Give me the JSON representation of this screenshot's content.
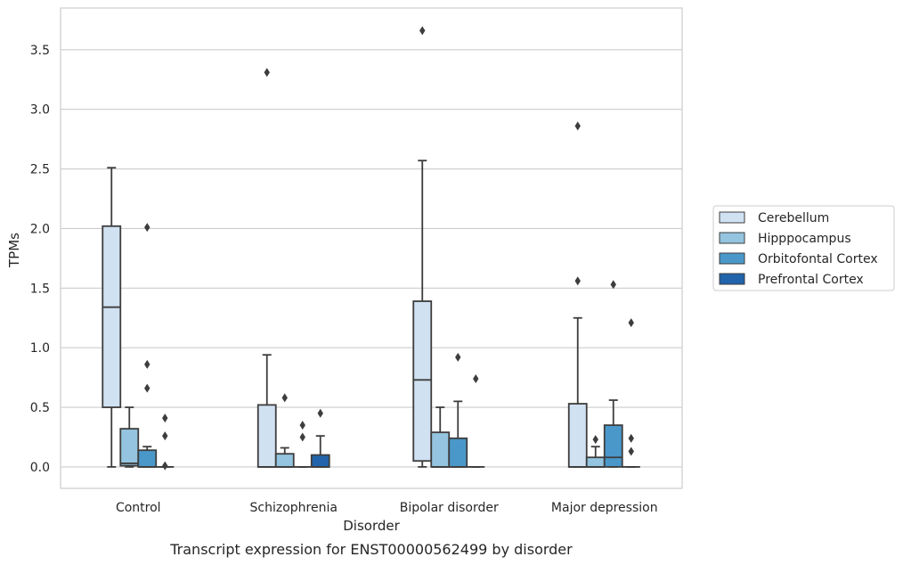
{
  "chart_data": {
    "type": "box",
    "xlabel": "Disorder",
    "ylabel": "TPMs",
    "caption": "Transcript expression for ENST00000562499 by disorder",
    "ylim": [
      -0.18,
      3.85
    ],
    "yticks": [
      0.0,
      0.5,
      1.0,
      1.5,
      2.0,
      2.5,
      3.0,
      3.5
    ],
    "ytick_labels": [
      "0.0",
      "0.5",
      "1.0",
      "1.5",
      "2.0",
      "2.5",
      "3.0",
      "3.5"
    ],
    "grid": "horizontal",
    "legend_position": "right",
    "categories": [
      "Control",
      "Schizophrenia",
      "Bipolar disorder",
      "Major depression"
    ],
    "series": [
      {
        "name": "Cerebellum",
        "color": "#d0e1f2",
        "boxes": [
          {
            "whislo": 0.0,
            "q1": 0.5,
            "med": 1.34,
            "q3": 2.02,
            "whishi": 2.51,
            "fliers": []
          },
          {
            "whislo": 0.0,
            "q1": 0.0,
            "med": 0.0,
            "q3": 0.52,
            "whishi": 0.94,
            "fliers": [
              3.31
            ]
          },
          {
            "whislo": 0.0,
            "q1": 0.05,
            "med": 0.73,
            "q3": 1.39,
            "whishi": 2.57,
            "fliers": [
              3.66
            ]
          },
          {
            "whislo": 0.0,
            "q1": 0.0,
            "med": 0.0,
            "q3": 0.53,
            "whishi": 1.25,
            "fliers": [
              2.86,
              1.56
            ]
          }
        ]
      },
      {
        "name": "Hipppocampus",
        "color": "#94c4df",
        "boxes": [
          {
            "whislo": 0.0,
            "q1": 0.01,
            "med": 0.03,
            "q3": 0.32,
            "whishi": 0.5,
            "fliers": []
          },
          {
            "whislo": 0.0,
            "q1": 0.0,
            "med": 0.0,
            "q3": 0.11,
            "whishi": 0.16,
            "fliers": [
              0.58
            ]
          },
          {
            "whislo": 0.0,
            "q1": 0.0,
            "med": 0.0,
            "q3": 0.29,
            "whishi": 0.5,
            "fliers": []
          },
          {
            "whislo": 0.0,
            "q1": 0.0,
            "med": 0.0,
            "q3": 0.08,
            "whishi": 0.17,
            "fliers": [
              0.23
            ]
          }
        ]
      },
      {
        "name": "Orbitofontal Cortex",
        "color": "#4a98c9",
        "boxes": [
          {
            "whislo": 0.0,
            "q1": 0.0,
            "med": 0.0,
            "q3": 0.14,
            "whishi": 0.17,
            "fliers": [
              2.01,
              0.86,
              0.66
            ]
          },
          {
            "whislo": 0.0,
            "q1": 0.0,
            "med": 0.0,
            "q3": 0.0,
            "whishi": 0.0,
            "fliers": [
              0.35,
              0.25
            ]
          },
          {
            "whislo": 0.0,
            "q1": 0.0,
            "med": 0.0,
            "q3": 0.24,
            "whishi": 0.55,
            "fliers": [
              0.92
            ]
          },
          {
            "whislo": 0.0,
            "q1": 0.0,
            "med": 0.08,
            "q3": 0.35,
            "whishi": 0.56,
            "fliers": [
              1.53
            ]
          }
        ]
      },
      {
        "name": "Prefrontal Cortex",
        "color": "#2164ab",
        "boxes": [
          {
            "whislo": 0.0,
            "q1": 0.0,
            "med": 0.0,
            "q3": 0.0,
            "whishi": 0.0,
            "fliers": [
              0.41,
              0.26,
              0.01
            ]
          },
          {
            "whislo": 0.0,
            "q1": 0.0,
            "med": 0.0,
            "q3": 0.1,
            "whishi": 0.26,
            "fliers": [
              0.45
            ]
          },
          {
            "whislo": 0.0,
            "q1": 0.0,
            "med": 0.0,
            "q3": 0.0,
            "whishi": 0.0,
            "fliers": [
              0.74
            ]
          },
          {
            "whislo": 0.0,
            "q1": 0.0,
            "med": 0.0,
            "q3": 0.0,
            "whishi": 0.0,
            "fliers": [
              1.21,
              0.24,
              0.13
            ]
          }
        ]
      }
    ]
  }
}
